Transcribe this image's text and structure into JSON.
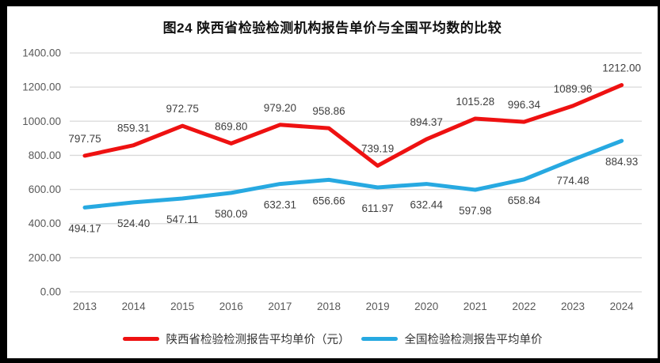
{
  "title": "图24 陕西省检验检测机构报告单价与全国平均数的比较",
  "colors": {
    "shaanxi": "#ee1111",
    "national": "#27a9e1",
    "grid": "#d9d9d9",
    "axis_text": "#595959",
    "label_text": "#3f3f3f",
    "frame": "#000000",
    "background": "#ffffff"
  },
  "chart_data": {
    "type": "line",
    "title": "图24 陕西省检验检测机构报告单价与全国平均数的比较",
    "categories": [
      "2013",
      "2014",
      "2015",
      "2016",
      "2017",
      "2018",
      "2019",
      "2020",
      "2021",
      "2022",
      "2023",
      "2024"
    ],
    "series": [
      {
        "name": "陕西省检验检测报告平均单价（元）",
        "color_key": "shaanxi",
        "values": [
          797.75,
          859.31,
          972.75,
          869.8,
          979.2,
          958.86,
          739.19,
          894.37,
          1015.28,
          996.34,
          1089.96,
          1212.0
        ],
        "label_position": "above"
      },
      {
        "name": "全国检验检测报告平均单价",
        "color_key": "national",
        "values": [
          494.17,
          524.4,
          547.11,
          580.09,
          632.31,
          656.66,
          611.97,
          632.44,
          597.98,
          658.84,
          774.48,
          884.93
        ],
        "label_position": "below"
      }
    ],
    "xlabel": "",
    "ylabel": "",
    "ylim": [
      0,
      1400
    ],
    "ytick_step": 200,
    "ytick_labels": [
      "0.00",
      "200.00",
      "400.00",
      "600.00",
      "800.00",
      "1000.00",
      "1200.00",
      "1400.00"
    ],
    "grid": true,
    "legend_position": "bottom",
    "data_labels": true,
    "value_format_decimals": 2
  }
}
